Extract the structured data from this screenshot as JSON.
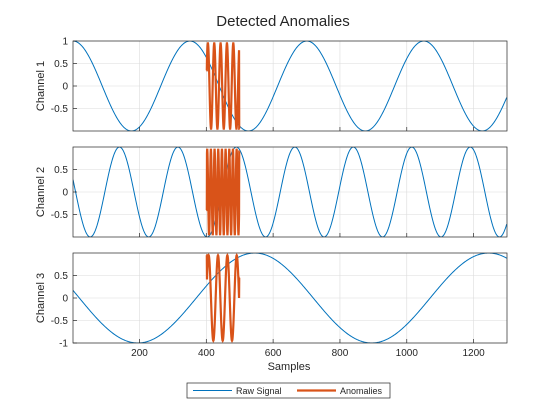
{
  "figure": {
    "title": "Detected Anomalies",
    "xlabel": "Samples",
    "legend": {
      "placement": "bottom-center",
      "items": [
        "Raw Signal",
        "Anomalies"
      ]
    }
  },
  "colors": {
    "raw": "#0072BD",
    "anomaly": "#D95319",
    "axes": "#262626",
    "grid": "#dcdcdc"
  },
  "chart_data": [
    {
      "type": "line",
      "ylabel": "Channel 1",
      "xlim": [
        1,
        1300
      ],
      "ylim": [
        -1,
        1
      ],
      "xticks": [
        200,
        400,
        600,
        800,
        1000,
        1200
      ],
      "xticklabels": [],
      "yticks": [
        1,
        0.5,
        0,
        -0.5
      ],
      "yticklabels": [
        "1",
        "0.5",
        "0",
        "-0.5"
      ],
      "grid": true,
      "series": [
        {
          "name": "Raw Signal",
          "kind": "sinusoid",
          "period": 350,
          "phase_peak_at": 1,
          "x_range": [
            1,
            1300
          ]
        },
        {
          "name": "Anomalies",
          "kind": "sinusoid",
          "period": 19,
          "x_range": [
            400,
            500
          ],
          "end_value": -0.95,
          "start_value": 0.35
        }
      ]
    },
    {
      "type": "line",
      "ylabel": "Channel 2",
      "xlim": [
        1,
        1300
      ],
      "ylim": [
        -1,
        1
      ],
      "xticks": [
        200,
        400,
        600,
        800,
        1000,
        1200
      ],
      "xticklabels": [],
      "yticks": [
        0.5,
        0,
        -0.5
      ],
      "yticklabels": [
        "0.5",
        "0",
        "-0.5"
      ],
      "grid": true,
      "series": [
        {
          "name": "Raw Signal",
          "kind": "sinusoid",
          "period": 175,
          "phase_peak_at": 140,
          "x_range": [
            1,
            1300
          ]
        },
        {
          "name": "Anomalies",
          "kind": "sinusoid",
          "period": 11,
          "x_range": [
            400,
            500
          ],
          "end_value": 0.9,
          "start_value": -0.4
        }
      ]
    },
    {
      "type": "line",
      "ylabel": "Channel 3",
      "xlim": [
        1,
        1300
      ],
      "ylim": [
        -1,
        1
      ],
      "xticks": [
        200,
        400,
        600,
        800,
        1000,
        1200
      ],
      "xticklabels": [
        "200",
        "400",
        "600",
        "800",
        "1000",
        "1200"
      ],
      "yticks": [
        0.5,
        0,
        -0.5,
        -1
      ],
      "yticklabels": [
        "0.5",
        "0",
        "-0.5",
        "-1"
      ],
      "grid": true,
      "series": [
        {
          "name": "Raw Signal",
          "kind": "sinusoid",
          "period": 700,
          "phase_peak_at": 545,
          "x_range": [
            1,
            1300
          ]
        },
        {
          "name": "Anomalies",
          "kind": "sinusoid",
          "period": 28,
          "x_range": [
            400,
            500
          ],
          "end_value": 0.45,
          "start_value": 0.95
        }
      ]
    }
  ]
}
